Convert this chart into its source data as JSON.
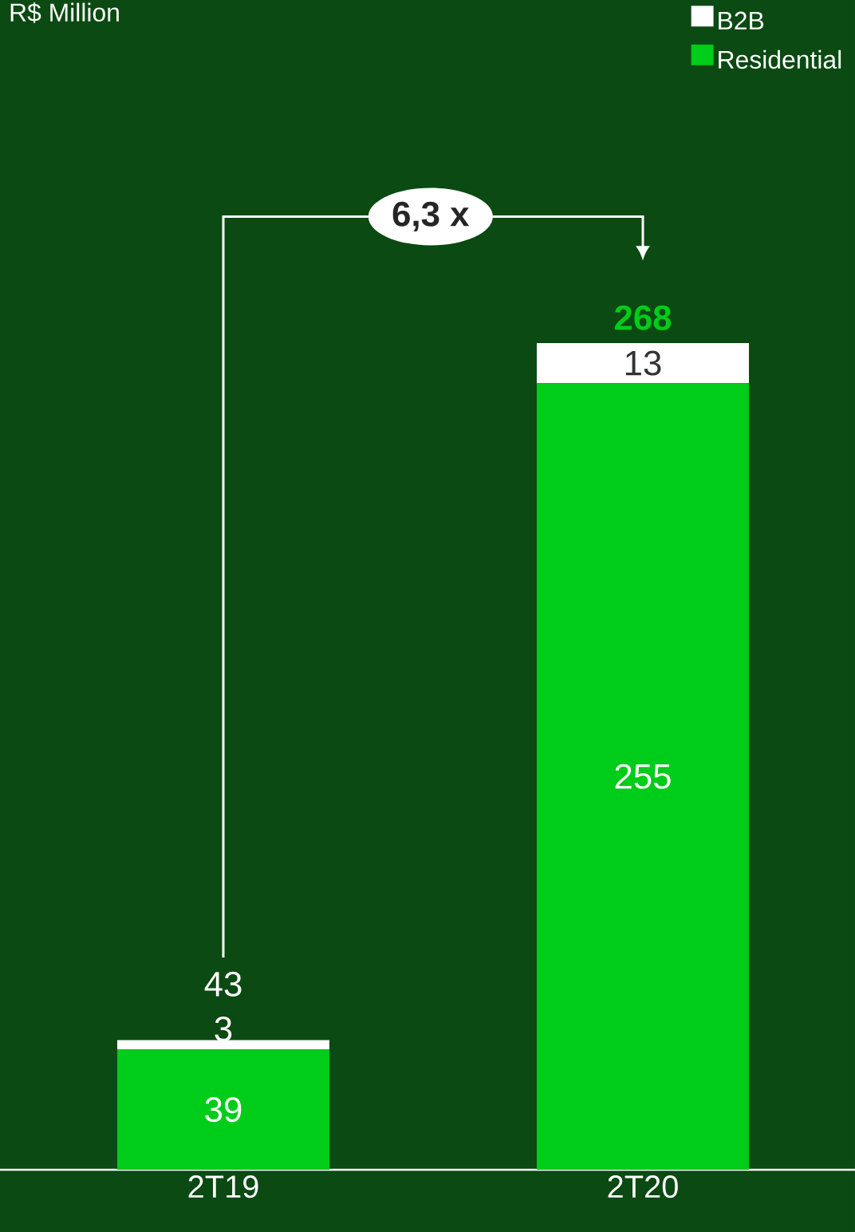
{
  "chart_data": {
    "type": "bar",
    "stacked": true,
    "categories": [
      "2T19",
      "2T20"
    ],
    "series": [
      {
        "name": "Residential",
        "color": "#00cc1a",
        "values": [
          39,
          255
        ]
      },
      {
        "name": "B2B",
        "color": "#ffffff",
        "values": [
          3,
          13
        ]
      }
    ],
    "data_labels": true,
    "totals": [
      "43",
      "268"
    ],
    "legend": "top right",
    "annotations": [
      "R$ Million",
      "6,3 x"
    ]
  }
}
